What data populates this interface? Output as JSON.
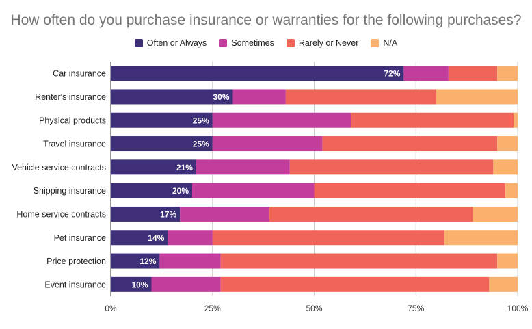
{
  "chart_data": {
    "type": "bar",
    "orientation": "horizontal",
    "stacked": true,
    "title": "How often do you purchase insurance or warranties for the following purchases?",
    "categories": [
      "Car insurance",
      "Renter's insurance",
      "Physical products",
      "Travel insurance",
      "Vehicle service contracts",
      "Shipping insurance",
      "Home service contracts",
      "Pet insurance",
      "Price protection",
      "Event insurance"
    ],
    "series": [
      {
        "name": "Often or Always",
        "color": "#3f2e78",
        "values": [
          72,
          30,
          25,
          25,
          21,
          20,
          17,
          14,
          12,
          10
        ]
      },
      {
        "name": "Sometimes",
        "color": "#c23d9c",
        "values": [
          11,
          13,
          34,
          27,
          23,
          30,
          22,
          11,
          15,
          17
        ]
      },
      {
        "name": "Rarely or Never",
        "color": "#f0645a",
        "values": [
          12,
          37,
          40,
          43,
          50,
          47,
          50,
          57,
          68,
          66
        ]
      },
      {
        "name": "N/A",
        "color": "#f9b16d",
        "values": [
          5,
          20,
          1,
          5,
          6,
          3,
          11,
          18,
          5,
          7
        ]
      }
    ],
    "data_labels": [
      "72%",
      "30%",
      "25%",
      "25%",
      "21%",
      "20%",
      "17%",
      "14%",
      "12%",
      "10%"
    ],
    "xlim": [
      0,
      100
    ],
    "xticks": [
      "0%",
      "25%",
      "50%",
      "75%",
      "100%"
    ],
    "grid": true,
    "legend_position": "top"
  }
}
